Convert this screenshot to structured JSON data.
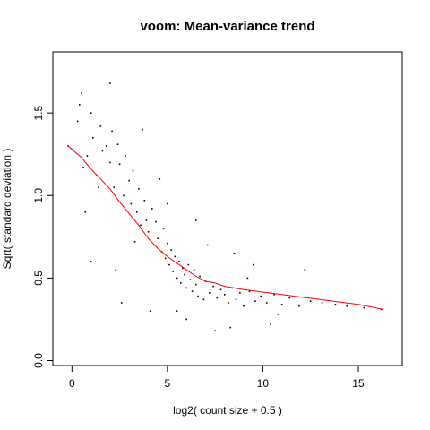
{
  "chart_data": {
    "type": "scatter",
    "title": "voom: Mean-variance trend",
    "xlabel": "log2( count size + 0.5 )",
    "ylabel": "Sqrt( standard deviation )",
    "xlim": [
      -1,
      17.3
    ],
    "ylim": [
      -0.03,
      1.87
    ],
    "x_ticks": [
      0,
      5,
      10,
      15
    ],
    "y_ticks": [
      0.0,
      0.5,
      1.0,
      1.5
    ],
    "x_tick_labels": [
      "0",
      "5",
      "10",
      "15"
    ],
    "y_tick_labels": [
      "0.0",
      "0.5",
      "1.0",
      "1.5"
    ],
    "grid": false,
    "series": [
      {
        "kind": "points",
        "color": "#000000",
        "x": [
          -0.2,
          0.0,
          0.3,
          0.5,
          0.6,
          0.8,
          1.0,
          1.1,
          1.3,
          1.5,
          1.6,
          1.8,
          2.0,
          2.1,
          2.2,
          2.4,
          2.5,
          2.7,
          2.8,
          3.0,
          3.1,
          3.2,
          3.4,
          3.5,
          3.6,
          3.8,
          3.9,
          4.0,
          4.2,
          4.3,
          4.4,
          4.5,
          4.7,
          4.8,
          4.9,
          5.0,
          5.1,
          5.2,
          5.3,
          5.4,
          5.5,
          5.6,
          5.7,
          5.8,
          5.9,
          6.0,
          6.1,
          6.2,
          6.3,
          6.4,
          6.5,
          6.6,
          6.7,
          6.8,
          6.9,
          7.0,
          7.2,
          7.4,
          7.6,
          7.8,
          8.0,
          8.2,
          8.4,
          8.6,
          8.8,
          9.0,
          9.3,
          9.6,
          9.9,
          10.2,
          10.6,
          11.0,
          11.4,
          11.9,
          12.5,
          13.1,
          13.8,
          14.4,
          15.3,
          16.2,
          0.7,
          1.4,
          2.3,
          3.3,
          4.1,
          5.0,
          6.0,
          7.1,
          8.3,
          9.5,
          10.8,
          12.2,
          1.0,
          2.6,
          4.6,
          6.5,
          8.5,
          10.4,
          0.4,
          2.0,
          3.7,
          5.5,
          7.5,
          9.2
        ],
        "y": [
          1.3,
          1.28,
          1.45,
          1.62,
          1.17,
          1.24,
          1.5,
          1.35,
          1.12,
          1.42,
          1.27,
          1.3,
          1.2,
          1.39,
          1.05,
          1.31,
          1.19,
          1.0,
          1.24,
          1.09,
          0.95,
          1.15,
          0.9,
          1.04,
          0.82,
          0.97,
          0.85,
          0.78,
          0.92,
          0.7,
          0.84,
          0.74,
          0.66,
          0.8,
          0.62,
          0.71,
          0.58,
          0.67,
          0.54,
          0.63,
          0.5,
          0.6,
          0.47,
          0.56,
          0.52,
          0.44,
          0.58,
          0.49,
          0.42,
          0.55,
          0.46,
          0.39,
          0.51,
          0.44,
          0.37,
          0.48,
          0.41,
          0.45,
          0.38,
          0.43,
          0.4,
          0.35,
          0.44,
          0.37,
          0.41,
          0.33,
          0.42,
          0.36,
          0.39,
          0.35,
          0.4,
          0.34,
          0.38,
          0.33,
          0.36,
          0.35,
          0.34,
          0.33,
          0.32,
          0.31,
          0.9,
          1.05,
          0.55,
          0.72,
          0.3,
          0.95,
          0.25,
          0.7,
          0.2,
          0.58,
          0.28,
          0.55,
          0.6,
          0.35,
          1.1,
          0.85,
          0.65,
          0.22,
          1.55,
          1.68,
          1.4,
          0.3,
          0.18,
          0.5
        ]
      },
      {
        "kind": "trend",
        "color": "#ff0000",
        "x": [
          -0.2,
          0.5,
          1.0,
          1.5,
          2.0,
          2.5,
          3.0,
          3.5,
          4.0,
          4.5,
          5.0,
          5.5,
          6.0,
          6.5,
          7.0,
          7.5,
          8.0,
          9.0,
          10.0,
          11.0,
          12.0,
          13.0,
          14.0,
          15.0,
          16.3
        ],
        "y": [
          1.3,
          1.23,
          1.16,
          1.1,
          1.04,
          0.96,
          0.89,
          0.82,
          0.74,
          0.68,
          0.63,
          0.59,
          0.55,
          0.51,
          0.48,
          0.47,
          0.45,
          0.43,
          0.415,
          0.4,
          0.385,
          0.37,
          0.355,
          0.34,
          0.31
        ]
      }
    ]
  }
}
